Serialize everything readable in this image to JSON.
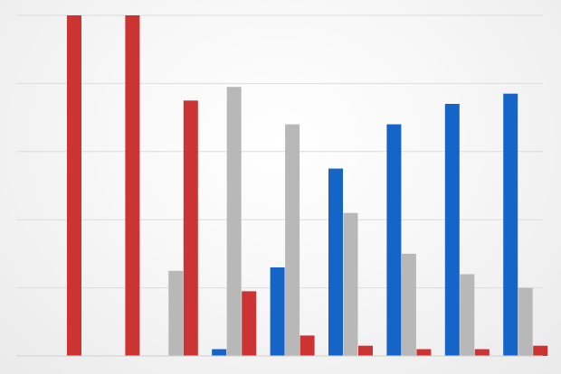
{
  "chart_data": {
    "type": "bar",
    "title": "",
    "xlabel": "",
    "ylabel": "",
    "categories": [
      "",
      "",
      "",
      "",
      "",
      "",
      "",
      "",
      "",
      ""
    ],
    "ylim": [
      0,
      100
    ],
    "grid": true,
    "legend": "none",
    "series": [
      {
        "color": "#1565c8",
        "values": [
          0,
          0,
          0,
          2,
          26,
          55,
          68,
          74,
          77,
          0
        ]
      },
      {
        "color": "#b8b8b8",
        "values": [
          0,
          0,
          25,
          79,
          68,
          42,
          30,
          24,
          20,
          0
        ]
      },
      {
        "color": "#cc3333",
        "values": [
          100,
          100,
          75,
          19,
          6,
          3,
          2,
          2,
          3,
          0
        ]
      }
    ],
    "bar_groups": [
      [
        null,
        null,
        100
      ],
      [
        null,
        null,
        100
      ],
      [
        null,
        25,
        75
      ],
      [
        2,
        79,
        19
      ],
      [
        26,
        68,
        6
      ],
      [
        55,
        42,
        3
      ],
      [
        68,
        30,
        2
      ],
      [
        74,
        24,
        2
      ],
      [
        77,
        20,
        3
      ]
    ]
  }
}
